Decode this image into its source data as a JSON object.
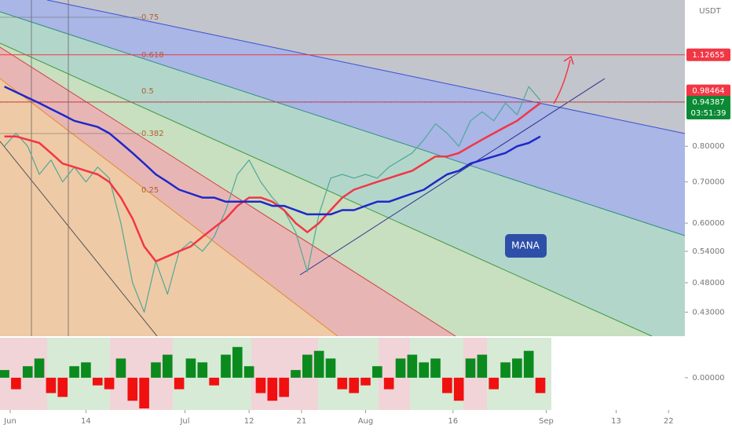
{
  "chart_data": {
    "type": "line",
    "symbol": "MANA",
    "currency": "USDT",
    "log_scale": true,
    "xlim": [
      -1.75,
      115.8
    ],
    "xticks": [
      {
        "value": 0,
        "label": "Jun"
      },
      {
        "value": 13,
        "label": "14"
      },
      {
        "value": 30,
        "label": "Jul"
      },
      {
        "value": 41,
        "label": "12"
      },
      {
        "value": 50,
        "label": "21"
      },
      {
        "value": 61,
        "label": "Aug"
      },
      {
        "value": 76,
        "label": "16"
      },
      {
        "value": 92,
        "label": "Sep"
      },
      {
        "value": 104,
        "label": "13"
      },
      {
        "value": 113,
        "label": "22"
      }
    ],
    "ylim": [
      0.393,
      1.383
    ],
    "yticks": [
      {
        "value": 0.43,
        "label": "0.43000"
      },
      {
        "value": 0.48,
        "label": "0.48000"
      },
      {
        "value": 0.54,
        "label": "0.54000"
      },
      {
        "value": 0.6,
        "label": "0.60000"
      },
      {
        "value": 0.7,
        "label": "0.70000"
      },
      {
        "value": 0.8,
        "label": "0.80000"
      }
    ],
    "fib_levels": [
      0.75,
      0.618,
      0.5,
      0.382,
      0.25
    ],
    "price_levels": [
      {
        "value": 1.12655,
        "label": "1.12655",
        "color": "#f23645"
      },
      {
        "value": 0.98464,
        "label": "0.98464",
        "color": "#f23645"
      },
      {
        "value": 0.94413,
        "label": "0.94413",
        "color": "#f23645"
      }
    ],
    "last_price": {
      "value": 0.94387,
      "label": "0.94387",
      "color": "#0b8a35"
    },
    "countdown": "03:51:39",
    "x": [
      -1,
      1,
      3,
      5,
      7,
      9,
      11,
      13,
      15,
      17,
      19,
      21,
      23,
      25,
      27,
      29,
      31,
      33,
      35,
      37,
      39,
      41,
      43,
      45,
      47,
      49,
      51,
      53,
      55,
      57,
      59,
      61,
      63,
      65,
      67,
      69,
      71,
      73,
      75,
      77,
      79,
      81,
      83,
      85,
      87,
      89,
      91
    ],
    "series": [
      {
        "color": "#4fa898",
        "values": [
          0.8,
          0.84,
          0.8,
          0.72,
          0.76,
          0.7,
          0.74,
          0.7,
          0.74,
          0.71,
          0.6,
          0.48,
          0.43,
          0.52,
          0.46,
          0.54,
          0.56,
          0.54,
          0.57,
          0.63,
          0.72,
          0.76,
          0.7,
          0.66,
          0.63,
          0.58,
          0.5,
          0.62,
          0.71,
          0.72,
          0.71,
          0.72,
          0.71,
          0.74,
          0.76,
          0.78,
          0.82,
          0.87,
          0.84,
          0.8,
          0.88,
          0.91,
          0.88,
          0.94,
          0.9,
          1.0,
          0.95
        ]
      },
      {
        "color": "#f23645",
        "values": [
          0.83,
          0.83,
          0.82,
          0.81,
          0.78,
          0.75,
          0.74,
          0.73,
          0.72,
          0.7,
          0.66,
          0.61,
          0.55,
          0.52,
          0.53,
          0.54,
          0.55,
          0.57,
          0.59,
          0.61,
          0.64,
          0.66,
          0.66,
          0.65,
          0.63,
          0.6,
          0.58,
          0.6,
          0.63,
          0.66,
          0.68,
          0.69,
          0.7,
          0.71,
          0.72,
          0.73,
          0.75,
          0.77,
          0.77,
          0.78,
          0.8,
          0.82,
          0.84,
          0.86,
          0.88,
          0.91,
          0.94
        ]
      },
      {
        "color": "#1e28c8",
        "values": [
          1.0,
          0.98,
          0.96,
          0.94,
          0.92,
          0.9,
          0.88,
          0.87,
          0.86,
          0.84,
          0.81,
          0.78,
          0.75,
          0.72,
          0.7,
          0.68,
          0.67,
          0.66,
          0.66,
          0.65,
          0.65,
          0.65,
          0.65,
          0.64,
          0.64,
          0.63,
          0.62,
          0.62,
          0.62,
          0.63,
          0.63,
          0.64,
          0.65,
          0.65,
          0.66,
          0.67,
          0.68,
          0.7,
          0.72,
          0.73,
          0.75,
          0.76,
          0.77,
          0.78,
          0.8,
          0.81,
          0.83
        ]
      }
    ],
    "oscillator": {
      "ylim": [
        -0.8,
        1.0
      ],
      "yticks": [
        {
          "value": 0,
          "label": "0.00000"
        }
      ],
      "up_color": "#0b8a1e",
      "down_color": "#f01010",
      "values": [
        0.2,
        -0.3,
        0.3,
        0.5,
        -0.4,
        -0.5,
        0.3,
        0.4,
        -0.2,
        -0.3,
        0.5,
        -0.6,
        -0.8,
        0.4,
        0.6,
        -0.3,
        0.5,
        0.4,
        -0.2,
        0.6,
        0.8,
        0.3,
        -0.4,
        -0.6,
        -0.5,
        0.2,
        0.6,
        0.7,
        0.5,
        -0.3,
        -0.4,
        -0.2,
        0.3,
        -0.3,
        0.5,
        0.6,
        0.4,
        0.5,
        -0.4,
        -0.6,
        0.5,
        0.6,
        -0.3,
        0.4,
        0.5,
        0.7,
        -0.4
      ]
    }
  }
}
